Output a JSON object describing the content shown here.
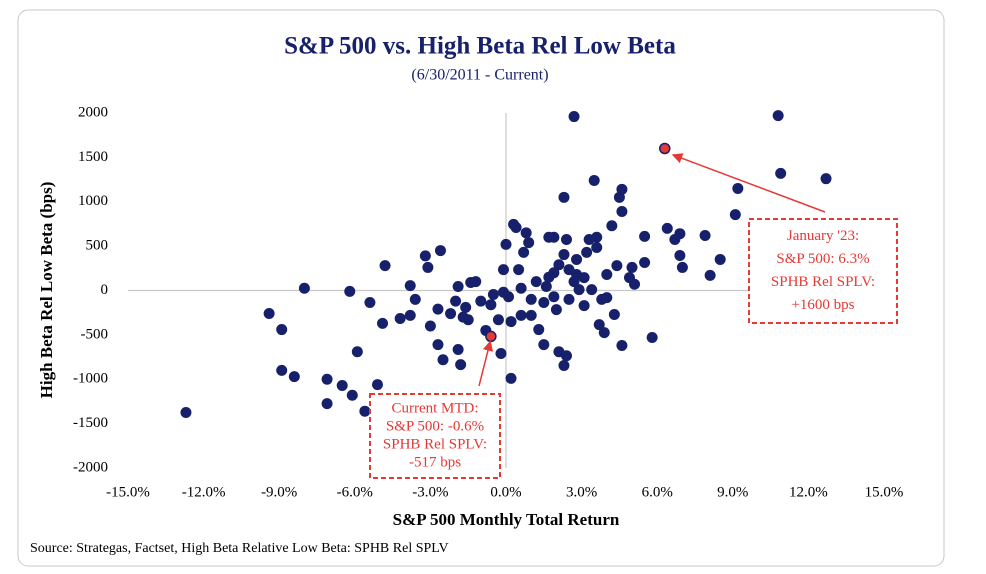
{
  "chart_data": {
    "type": "scatter",
    "title": "S&P 500 vs. High Beta Rel Low Beta",
    "subtitle": "(6/30/2011 - Current)",
    "x_label": "S&P 500 Monthly Total Return",
    "y_label": "High Beta Rel  Low Beta (bps)",
    "source": "Source: Strategas, Factset, High Beta Relative Low Beta: SPHB Rel SPLV",
    "xlim": [
      -15,
      15
    ],
    "ylim": [
      -2000,
      2000
    ],
    "xticks": [
      {
        "value": -15,
        "label": "-15.0%"
      },
      {
        "value": -12,
        "label": "-12.0%"
      },
      {
        "value": -9,
        "label": "-9.0%"
      },
      {
        "value": -6,
        "label": "-6.0%"
      },
      {
        "value": -3,
        "label": "-3.0%"
      },
      {
        "value": 0,
        "label": "0.0%"
      },
      {
        "value": 3,
        "label": "3.0%"
      },
      {
        "value": 6,
        "label": "6.0%"
      },
      {
        "value": 9,
        "label": "9.0%"
      },
      {
        "value": 12,
        "label": "12.0%"
      },
      {
        "value": 15,
        "label": "15.0%"
      }
    ],
    "yticks": [
      -2000,
      -1500,
      -1000,
      -500,
      0,
      500,
      1000,
      1500,
      2000
    ],
    "series": [
      {
        "color": "#17206a",
        "x": [
          -12.7,
          -9.4,
          -8.9,
          -8.9,
          -8.4,
          -8.0,
          -7.1,
          -7.1,
          -6.5,
          -6.2,
          -6.1,
          -5.9,
          -5.6,
          -5.4,
          -5.1,
          -4.9,
          -4.8,
          -4.2,
          -3.8,
          -3.8,
          -3.6,
          -3.2,
          -3.1,
          -3.0,
          -2.7,
          -2.6,
          -2.7,
          -2.5,
          -2.2,
          -2.0,
          -1.9,
          -1.9,
          -1.8,
          -1.7,
          -1.6,
          -1.5,
          -1.4,
          -1.2,
          -1.0,
          -0.8,
          -0.6,
          -0.5,
          -0.3,
          -0.2,
          -0.1,
          -0.1,
          0.0,
          0.1,
          0.2,
          0.2,
          0.3,
          0.4,
          0.5,
          0.6,
          0.6,
          0.7,
          0.8,
          0.9,
          1.0,
          1.0,
          1.2,
          1.3,
          1.5,
          1.5,
          1.7,
          1.7,
          1.9,
          1.9,
          2.0,
          2.1,
          2.1,
          2.3,
          2.3,
          2.3,
          2.4,
          2.5,
          2.5,
          2.4,
          2.7,
          2.7,
          2.8,
          2.9,
          3.1,
          3.2,
          3.3,
          3.4,
          3.5,
          3.6,
          3.6,
          3.7,
          3.8,
          3.9,
          4.0,
          4.0,
          4.2,
          4.3,
          4.4,
          4.5,
          4.6,
          4.6,
          4.6,
          4.9,
          5.0,
          5.1,
          5.5,
          5.5,
          5.8,
          6.4,
          6.7,
          6.9,
          6.9,
          7.0,
          7.9,
          8.1,
          8.5,
          9.1,
          9.2,
          10.8,
          10.9,
          12.7,
          1.6,
          1.9,
          2.8,
          3.1
        ],
        "values": [
          -1375,
          -259,
          -440,
          -900,
          -970,
          25,
          -1000,
          -1275,
          -1070,
          -10,
          -1180,
          -690,
          -1360,
          -135,
          -1060,
          -370,
          280,
          -315,
          55,
          -280,
          -100,
          390,
          260,
          -400,
          -210,
          450,
          -610,
          -780,
          -260,
          -120,
          45,
          -665,
          -835,
          -300,
          -190,
          -330,
          90,
          100,
          -120,
          -450,
          -160,
          -45,
          -330,
          -710,
          -20,
          235,
          520,
          -70,
          -350,
          -990,
          745,
          710,
          235,
          25,
          -280,
          430,
          650,
          540,
          -100,
          -280,
          100,
          -440,
          -135,
          -610,
          600,
          150,
          -70,
          600,
          -215,
          290,
          -690,
          1050,
          405,
          -845,
          575,
          235,
          -100,
          -735,
          1960,
          100,
          350,
          10,
          -170,
          430,
          575,
          10,
          1240,
          600,
          485,
          -385,
          -100,
          -475,
          180,
          -80,
          730,
          -270,
          280,
          1050,
          1140,
          -620,
          890,
          145,
          260,
          70,
          610,
          315,
          -530,
          700,
          575,
          640,
          395,
          260,
          620,
          170,
          350,
          855,
          1150,
          1970,
          1320,
          1260,
          45,
          200,
          180,
          145
        ]
      }
    ],
    "annotations": [
      {
        "lines": [
          "January '23:",
          "S&P 500: 6.3%",
          "SPHB Rel SPLV:",
          "+1600 bps"
        ],
        "x": 6.3,
        "y": 1600,
        "color": "#e53935"
      },
      {
        "lines": [
          "Current MTD:",
          "S&P 500: -0.6%",
          "SPHB Rel SPLV:",
          "-517 bps"
        ],
        "x": -0.6,
        "y": -517,
        "color": "#e53935"
      }
    ]
  }
}
